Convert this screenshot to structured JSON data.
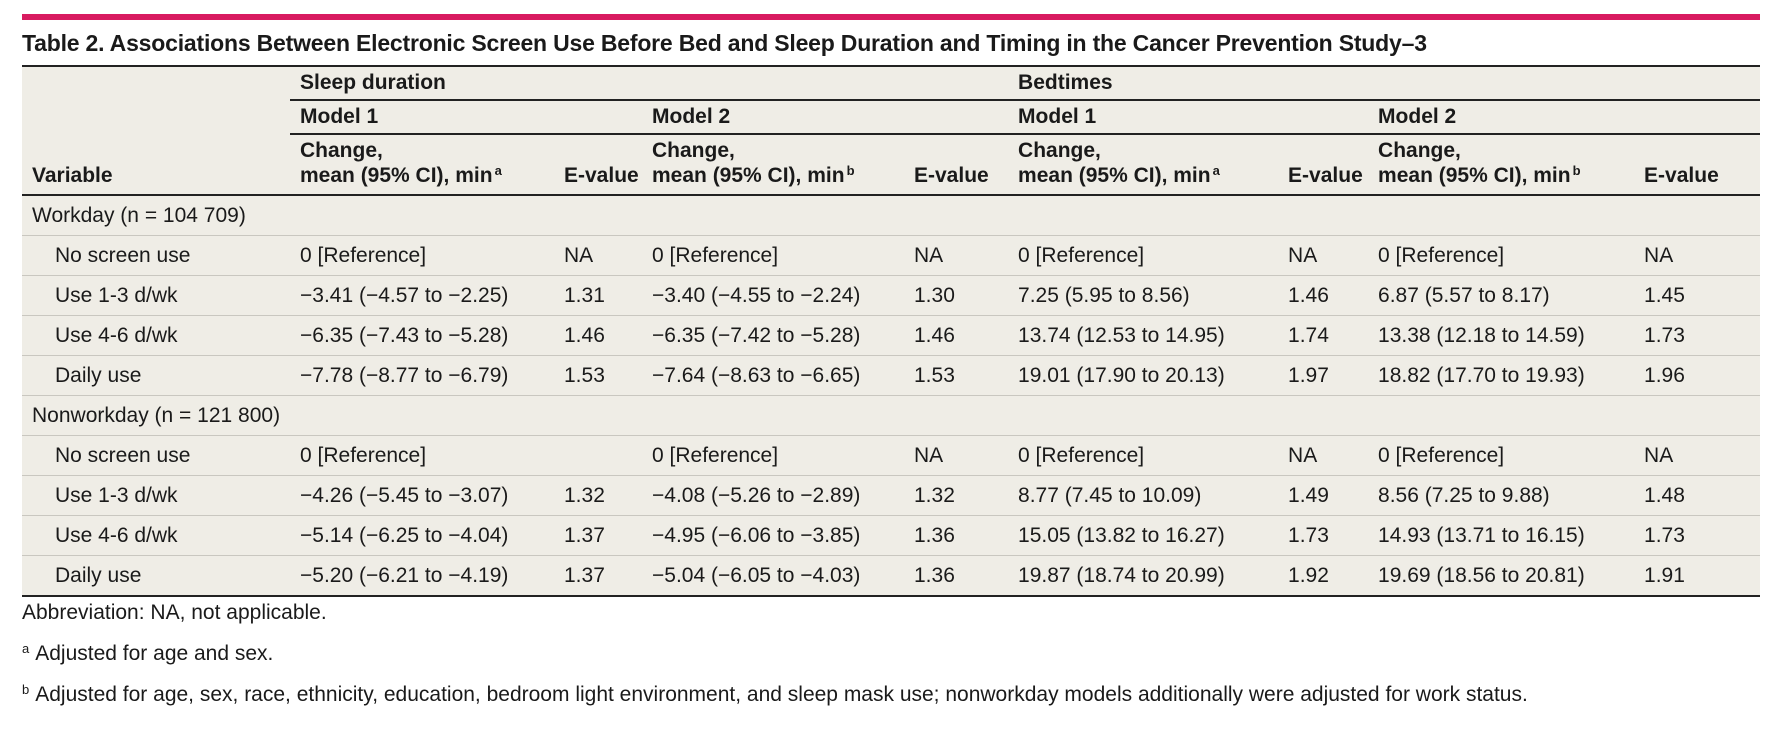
{
  "title": "Table 2. Associations Between Electronic Screen Use Before Bed and Sleep Duration and Timing in the Cancer Prevention Study–3",
  "headers": {
    "variable": "Variable",
    "sleep_duration": "Sleep duration",
    "bedtimes": "Bedtimes",
    "model1": "Model 1",
    "model2": "Model 2",
    "change_line1": "Change,",
    "change_line2": "mean (95% CI), min",
    "evalue": "E-value",
    "sup_a": "a",
    "sup_b": "b"
  },
  "groups": [
    {
      "label": "Workday (n = 104 709)",
      "rows": [
        {
          "variable": "No screen use",
          "sd_m1": "0 [Reference]",
          "sd_m1_e": "NA",
          "sd_m2": "0 [Reference]",
          "sd_m2_e": "NA",
          "bt_m1": "0 [Reference]",
          "bt_m1_e": "NA",
          "bt_m2": "0 [Reference]",
          "bt_m2_e": "NA"
        },
        {
          "variable": "Use 1-3 d/wk",
          "sd_m1": "−3.41 (−4.57 to −2.25)",
          "sd_m1_e": "1.31",
          "sd_m2": "−3.40 (−4.55 to −2.24)",
          "sd_m2_e": "1.30",
          "bt_m1": "7.25 (5.95 to 8.56)",
          "bt_m1_e": "1.46",
          "bt_m2": "6.87 (5.57 to 8.17)",
          "bt_m2_e": "1.45"
        },
        {
          "variable": "Use 4-6 d/wk",
          "sd_m1": "−6.35 (−7.43 to −5.28)",
          "sd_m1_e": "1.46",
          "sd_m2": "−6.35 (−7.42 to −5.28)",
          "sd_m2_e": "1.46",
          "bt_m1": "13.74 (12.53 to 14.95)",
          "bt_m1_e": "1.74",
          "bt_m2": "13.38 (12.18 to 14.59)",
          "bt_m2_e": "1.73"
        },
        {
          "variable": "Daily use",
          "sd_m1": "−7.78 (−8.77 to −6.79)",
          "sd_m1_e": "1.53",
          "sd_m2": "−7.64 (−8.63 to −6.65)",
          "sd_m2_e": "1.53",
          "bt_m1": "19.01 (17.90 to 20.13)",
          "bt_m1_e": "1.97",
          "bt_m2": "18.82 (17.70 to 19.93)",
          "bt_m2_e": "1.96"
        }
      ]
    },
    {
      "label": "Nonworkday (n = 121 800)",
      "rows": [
        {
          "variable": "No screen use",
          "sd_m1": "0 [Reference]",
          "sd_m1_e": "",
          "sd_m2": "0 [Reference]",
          "sd_m2_e": "NA",
          "bt_m1": "0 [Reference]",
          "bt_m1_e": "NA",
          "bt_m2": "0 [Reference]",
          "bt_m2_e": "NA"
        },
        {
          "variable": "Use 1-3 d/wk",
          "sd_m1": "−4.26 (−5.45 to −3.07)",
          "sd_m1_e": "1.32",
          "sd_m2": "−4.08 (−5.26 to −2.89)",
          "sd_m2_e": "1.32",
          "bt_m1": "8.77 (7.45 to 10.09)",
          "bt_m1_e": "1.49",
          "bt_m2": "8.56 (7.25 to 9.88)",
          "bt_m2_e": "1.48"
        },
        {
          "variable": "Use 4-6 d/wk",
          "sd_m1": "−5.14 (−6.25 to −4.04)",
          "sd_m1_e": "1.37",
          "sd_m2": "−4.95 (−6.06 to −3.85)",
          "sd_m2_e": "1.36",
          "bt_m1": "15.05 (13.82 to 16.27)",
          "bt_m1_e": "1.73",
          "bt_m2": "14.93 (13.71 to 16.15)",
          "bt_m2_e": "1.73"
        },
        {
          "variable": "Daily use",
          "sd_m1": "−5.20 (−6.21 to −4.19)",
          "sd_m1_e": "1.37",
          "sd_m2": "−5.04 (−6.05 to −4.03)",
          "sd_m2_e": "1.36",
          "bt_m1": "19.87 (18.74 to 20.99)",
          "bt_m1_e": "1.92",
          "bt_m2": "19.69 (18.56 to 20.81)",
          "bt_m2_e": "1.91"
        }
      ]
    }
  ],
  "notes": {
    "abbrev": "Abbreviation: NA, not applicable.",
    "fn_a_mark": "a",
    "fn_a": "Adjusted for age and sex.",
    "fn_b_mark": "b",
    "fn_b": "Adjusted for age, sex, race, ethnicity, education, bedroom light environment, and sleep mask use; nonworkday models additionally were adjusted for work status."
  },
  "colors": {
    "accent_bar": "#d81b60",
    "table_background": "#efede6",
    "rule": "#222222"
  }
}
